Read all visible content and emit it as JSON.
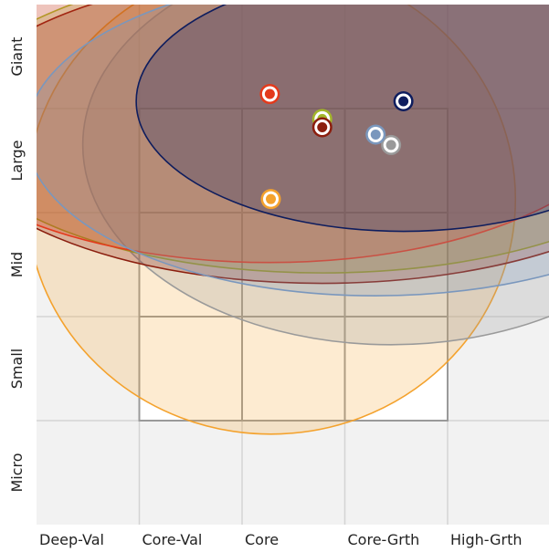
{
  "chart_data": {
    "type": "scatter",
    "title": "",
    "x_categories": [
      "Deep-Val",
      "Core-Val",
      "Core",
      "Core-Grth",
      "High-Grth"
    ],
    "y_categories": [
      "Micro",
      "Small",
      "Mid",
      "Large",
      "Giant"
    ],
    "grid": true,
    "background_color": "#f2f2f2",
    "grid_color": "#d4d4d4",
    "style_box": {
      "x_range": [
        1,
        4
      ],
      "y_range": [
        1,
        4
      ],
      "fill": "#ffffff",
      "stroke": "#9a9a9a"
    },
    "series": [
      {
        "color": "#f4a22d",
        "center": [
          2.28,
          3.13
        ],
        "ellipse_radius": [
          2.38,
          2.26
        ],
        "fill_opacity": 0.22
      },
      {
        "color": "#9a9a9a",
        "center": [
          3.45,
          3.65
        ],
        "ellipse_radius": [
          3.0,
          1.92
        ],
        "fill_opacity": 0.25
      },
      {
        "color": "#a3b62a",
        "center": [
          2.78,
          3.9
        ],
        "ellipse_radius": [
          3.65,
          1.48
        ],
        "fill_opacity": 0.25
      },
      {
        "color": "#8b1e0e",
        "center": [
          2.78,
          3.82
        ],
        "ellipse_radius": [
          3.65,
          1.5
        ],
        "fill_opacity": 0.25
      },
      {
        "color": "#e33a1c",
        "center": [
          2.27,
          4.14
        ],
        "ellipse_radius": [
          3.6,
          1.62
        ],
        "fill_opacity": 0.25
      },
      {
        "color": "#7a97bd",
        "center": [
          3.3,
          3.75
        ],
        "ellipse_radius": [
          3.4,
          1.55
        ],
        "fill_opacity": 0.25
      },
      {
        "color": "#0e1d5e",
        "center": [
          3.57,
          4.07
        ],
        "ellipse_radius": [
          2.6,
          1.25
        ],
        "fill_opacity": 0.25
      }
    ]
  }
}
